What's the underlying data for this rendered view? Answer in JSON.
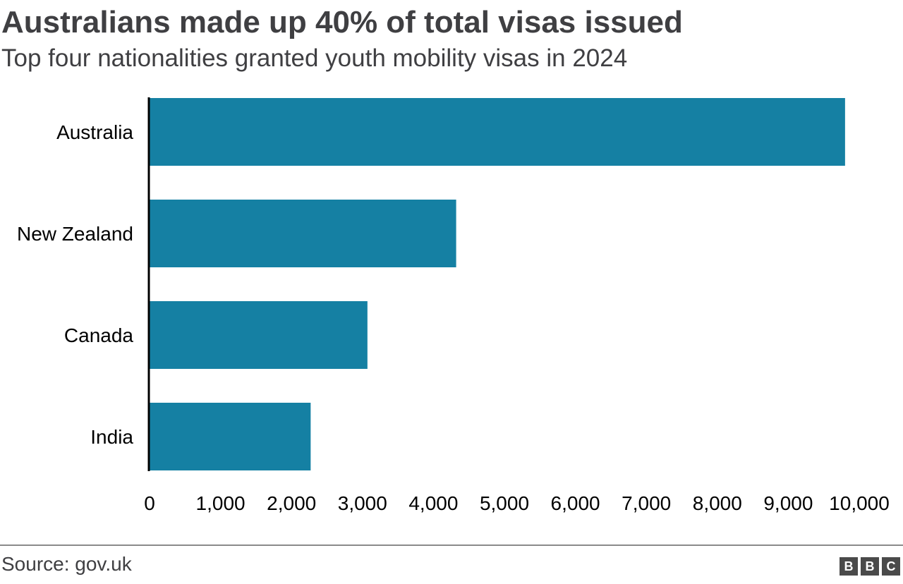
{
  "header": {
    "title": "Australians made up 40% of total visas issued",
    "subtitle": "Top four nationalities granted youth mobility visas in 2024"
  },
  "footer": {
    "source": "Source: gov.uk",
    "logo": [
      "B",
      "B",
      "C"
    ]
  },
  "colors": {
    "bar": "#1580a3",
    "axis": "#000000",
    "text": "#3f3f42",
    "rule": "#8a8a8a"
  },
  "chart_data": {
    "type": "bar",
    "orientation": "horizontal",
    "categories": [
      "Australia",
      "New Zealand",
      "Canada",
      "India"
    ],
    "values": [
      9800,
      4320,
      3070,
      2270
    ],
    "xlim": [
      0,
      10000
    ],
    "xticks": [
      0,
      1000,
      2000,
      3000,
      4000,
      5000,
      6000,
      7000,
      8000,
      9000,
      10000
    ],
    "xtick_labels": [
      "0",
      "1,000",
      "2,000",
      "3,000",
      "4,000",
      "5,000",
      "6,000",
      "7,000",
      "8,000",
      "9,000",
      "10,000"
    ],
    "grid": false,
    "legend": "none"
  }
}
